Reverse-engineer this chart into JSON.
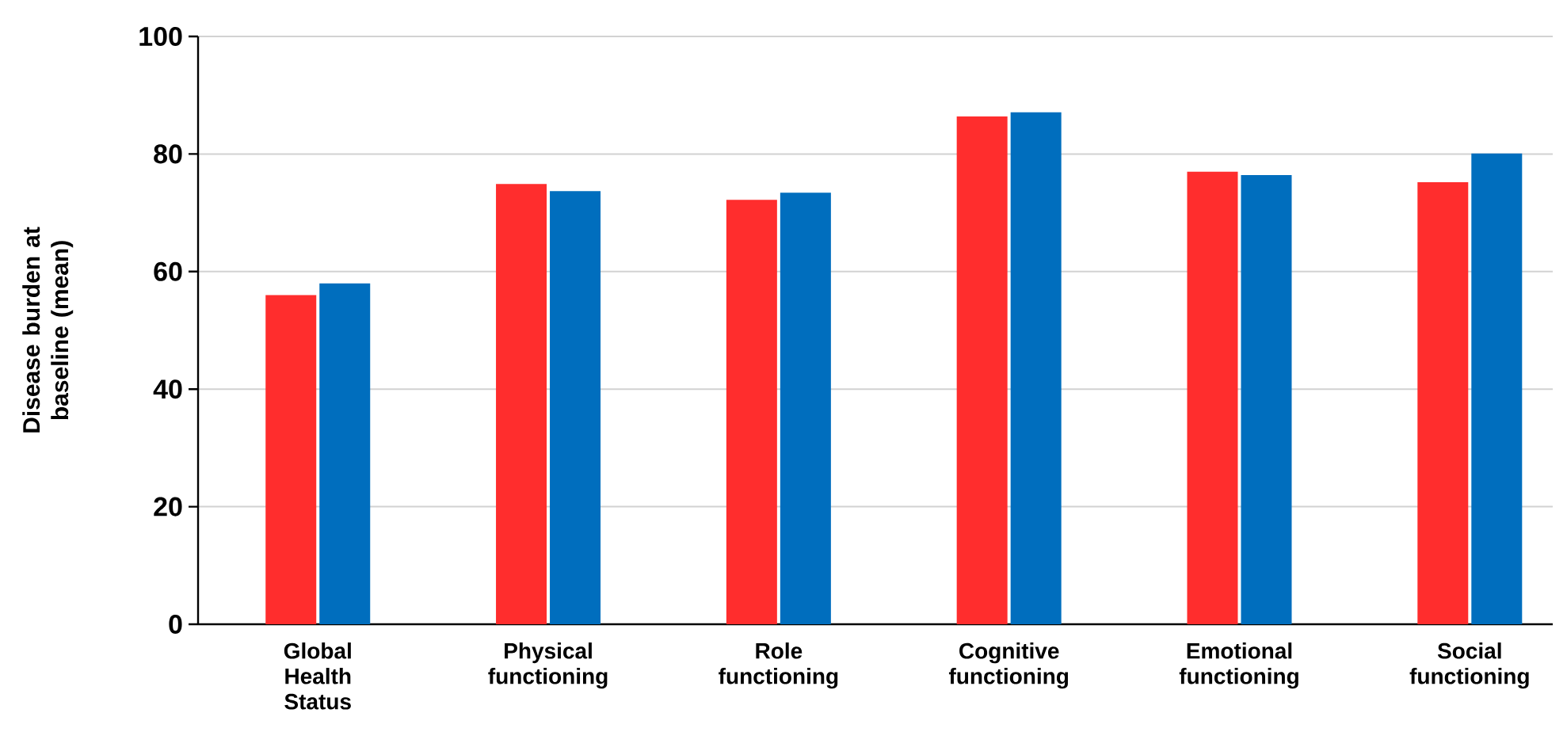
{
  "chart_data": {
    "type": "bar",
    "ylabel": "Disease burden at baseline (mean)",
    "categories": [
      "Global Health Status",
      "Physical functioning",
      "Role functioning",
      "Cognitive functioning",
      "Emotional functioning",
      "Social functioning"
    ],
    "series": [
      {
        "color": "#ff2d2d",
        "values": [
          56.0,
          74.9,
          72.2,
          86.4,
          77.0,
          75.2
        ]
      },
      {
        "color": "#006ebe",
        "values": [
          58.0,
          73.7,
          73.4,
          87.1,
          76.4,
          80.1
        ]
      }
    ],
    "ylim": [
      0,
      100
    ],
    "yticks": [
      0,
      20,
      40,
      60,
      80,
      100
    ],
    "grid": "y"
  }
}
